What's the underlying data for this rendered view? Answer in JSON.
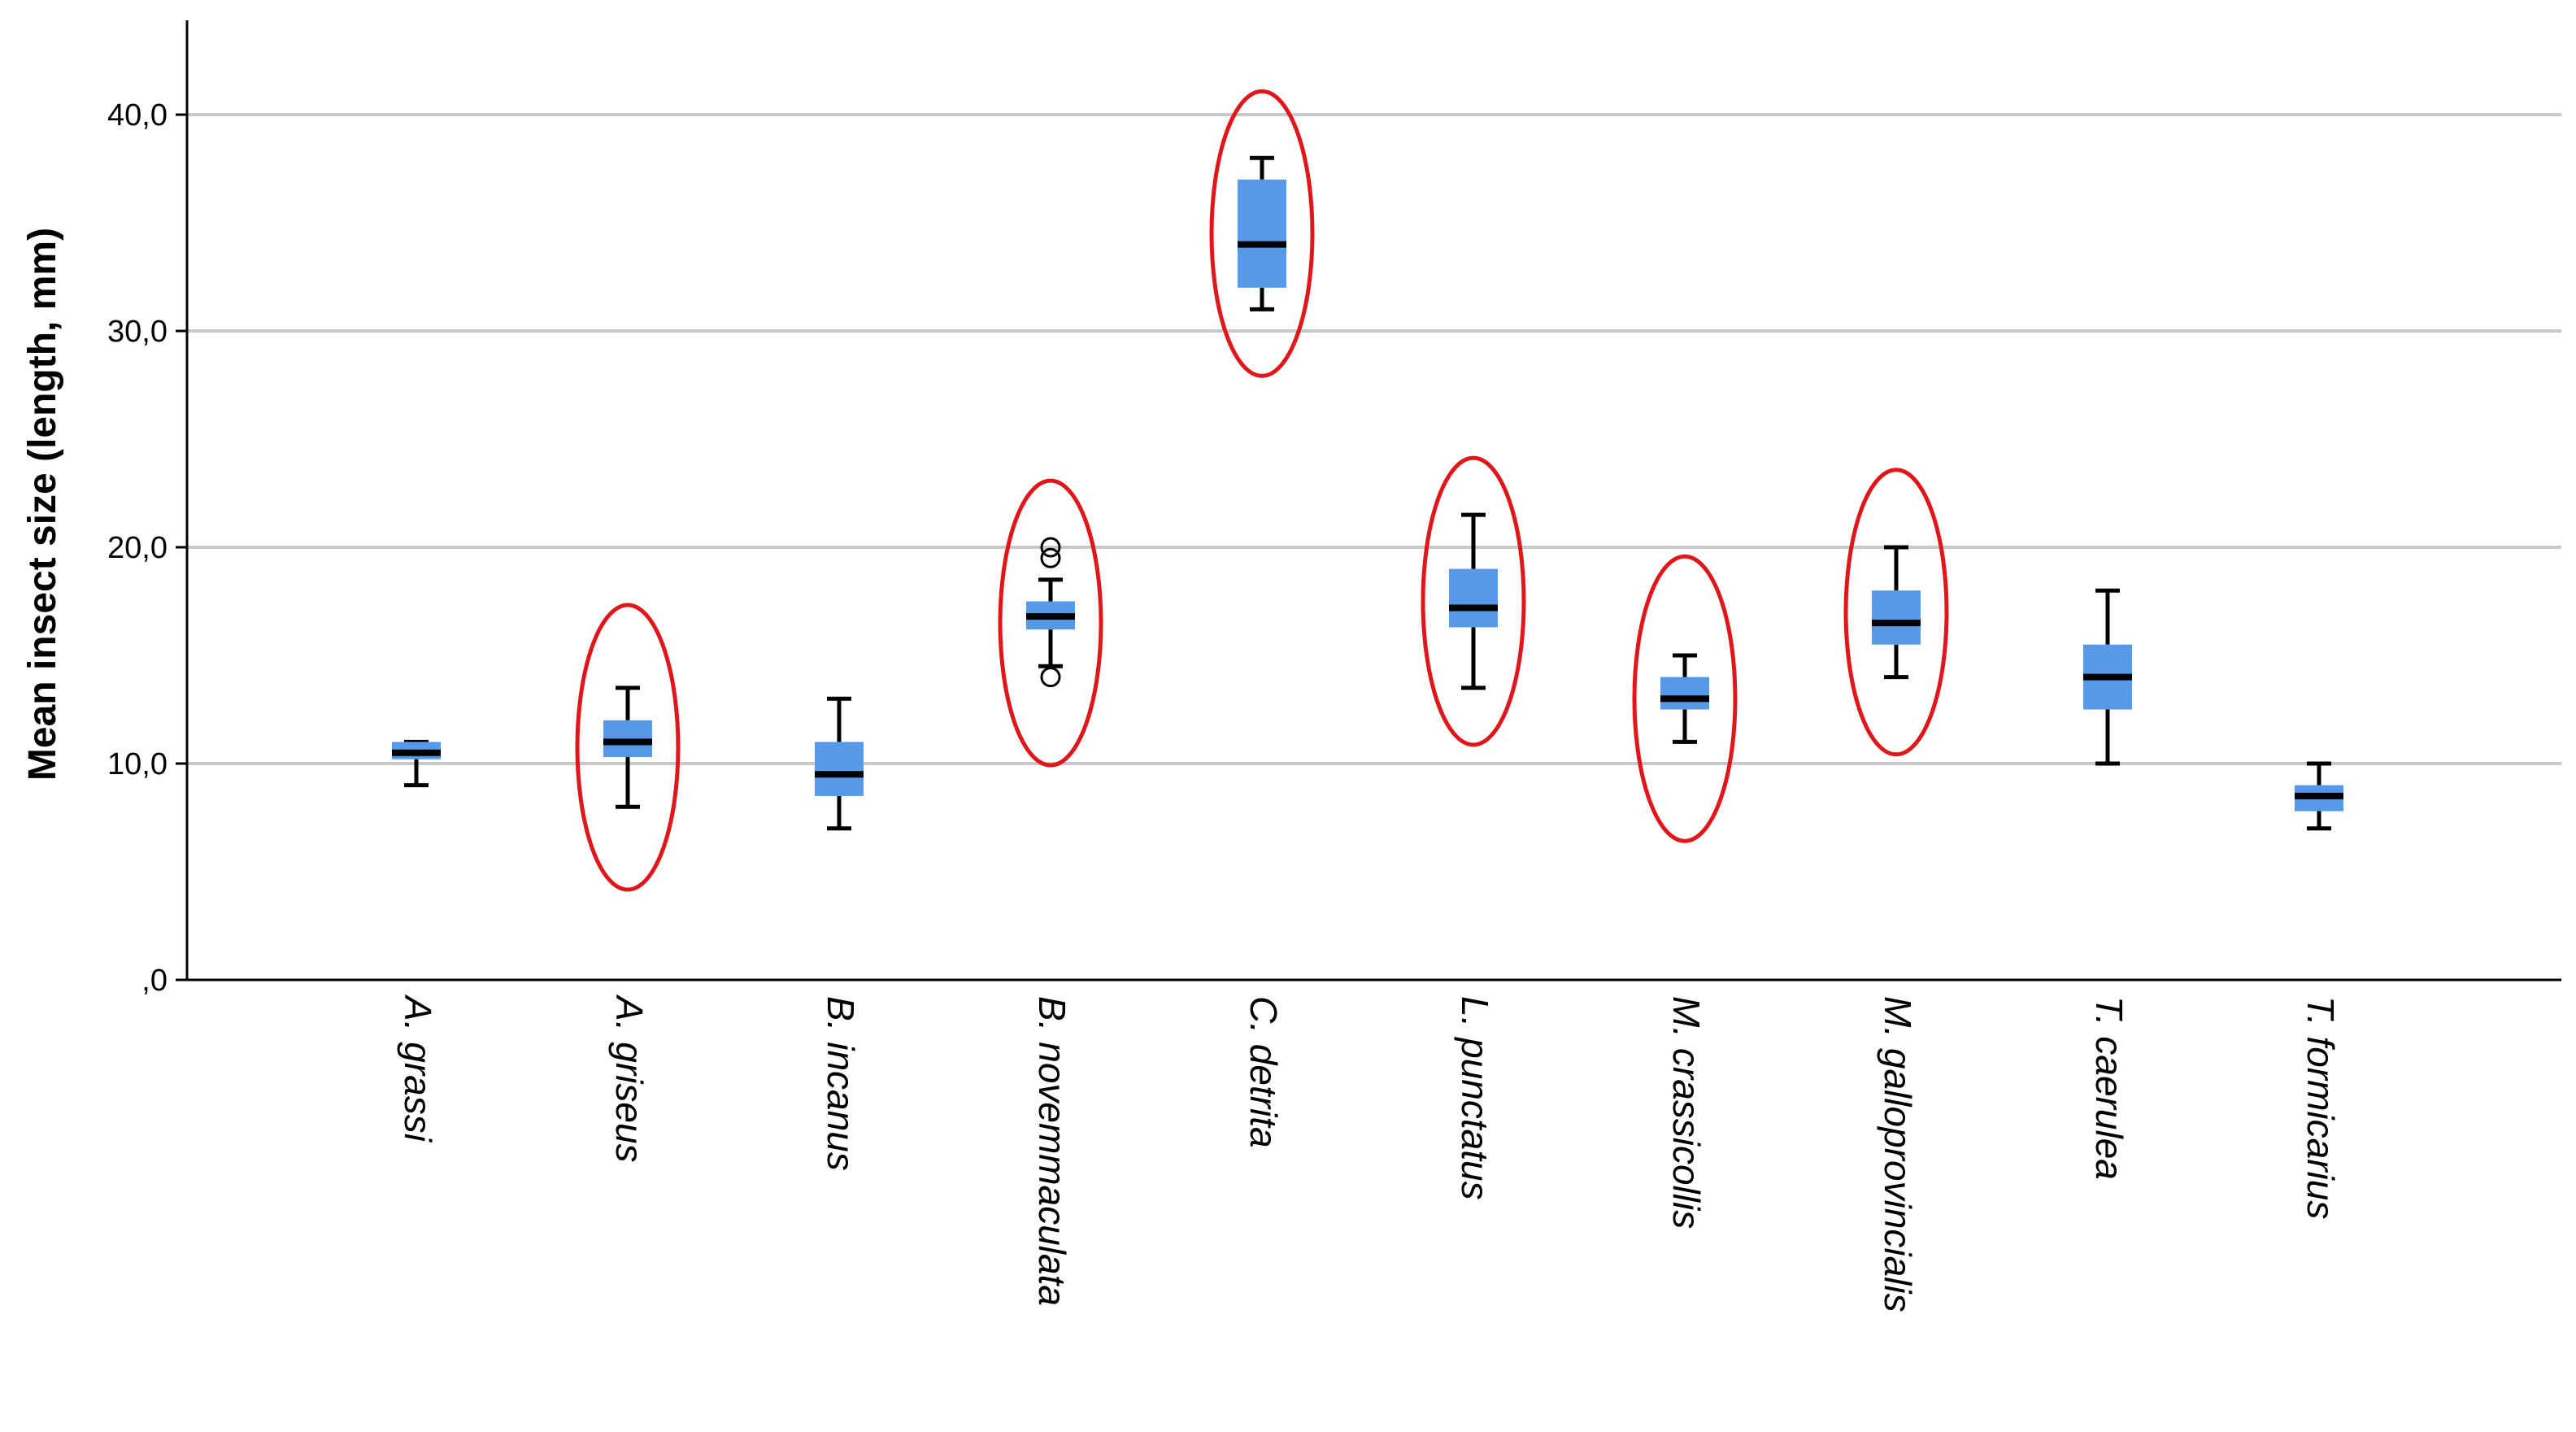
{
  "chart_data": {
    "type": "boxplot",
    "title": "",
    "xlabel": "",
    "ylabel": "Mean insect size (length, mm)",
    "ylim": [
      0,
      44
    ],
    "yticks": [
      {
        "value": 0,
        "label": ",0"
      },
      {
        "value": 10,
        "label": "10,0"
      },
      {
        "value": 20,
        "label": "20,0"
      },
      {
        "value": 30,
        "label": "30,0"
      },
      {
        "value": 40,
        "label": "40,0"
      }
    ],
    "grid": true,
    "box_color": "#5599e8",
    "median_color": "#000000",
    "highlight_color": "#e0161b",
    "categories": [
      {
        "label": "A. grassi",
        "min": 9.0,
        "q1": 10.2,
        "median": 10.5,
        "q3": 11.0,
        "max": 11.0,
        "outliers": [],
        "highlighted": false
      },
      {
        "label": "A. griseus",
        "min": 8.0,
        "q1": 10.3,
        "median": 11.0,
        "q3": 12.0,
        "max": 13.5,
        "outliers": [],
        "highlighted": true
      },
      {
        "label": "B. incanus",
        "min": 7.0,
        "q1": 8.5,
        "median": 9.5,
        "q3": 11.0,
        "max": 13.0,
        "outliers": [],
        "highlighted": false
      },
      {
        "label": "B. novemmaculata",
        "min": 14.5,
        "q1": 16.2,
        "median": 16.8,
        "q3": 17.5,
        "max": 18.5,
        "outliers": [
          14.0,
          19.5,
          20.0
        ],
        "highlighted": true
      },
      {
        "label": "C. detrita",
        "min": 31.0,
        "q1": 32.0,
        "median": 34.0,
        "q3": 37.0,
        "max": 38.0,
        "outliers": [],
        "highlighted": true
      },
      {
        "label": "L. punctatus",
        "min": 13.5,
        "q1": 16.3,
        "median": 17.2,
        "q3": 19.0,
        "max": 21.5,
        "outliers": [],
        "highlighted": true
      },
      {
        "label": "M. crassicollis",
        "min": 11.0,
        "q1": 12.5,
        "median": 13.0,
        "q3": 14.0,
        "max": 15.0,
        "outliers": [],
        "highlighted": true
      },
      {
        "label": "M. galloprovincialis",
        "min": 14.0,
        "q1": 15.5,
        "median": 16.5,
        "q3": 18.0,
        "max": 20.0,
        "outliers": [],
        "highlighted": true
      },
      {
        "label": "T. caerulea",
        "min": 10.0,
        "q1": 12.5,
        "median": 14.0,
        "q3": 15.5,
        "max": 18.0,
        "outliers": [],
        "highlighted": false
      },
      {
        "label": "T. formicarius",
        "min": 7.0,
        "q1": 7.8,
        "median": 8.5,
        "q3": 9.0,
        "max": 10.0,
        "outliers": [],
        "highlighted": false
      }
    ]
  }
}
